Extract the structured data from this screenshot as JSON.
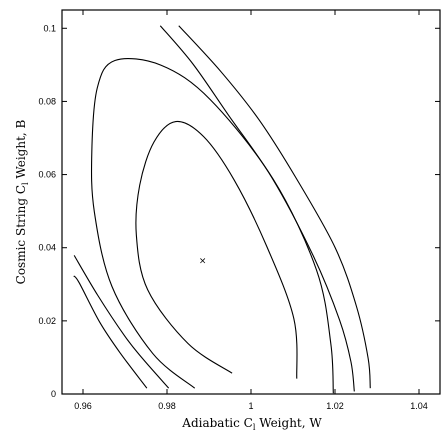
{
  "chart_data": {
    "type": "line",
    "xlabel": {
      "pre": "Adiabatic C",
      "sub": "l",
      "post": " Weight, W"
    },
    "ylabel": {
      "pre": "Cosmic String C",
      "sub": "l",
      "post": " Weight, B"
    },
    "xlim": [
      0.955,
      1.045
    ],
    "ylim": [
      0,
      0.105
    ],
    "x_ticks": [
      0.96,
      0.98,
      1,
      1.02,
      1.04
    ],
    "x_tick_labels": [
      "0.96",
      "0.98",
      "1",
      "1.02",
      "1.04"
    ],
    "y_ticks": [
      0,
      0.02,
      0.04,
      0.06,
      0.08,
      0.1
    ],
    "y_tick_labels": [
      "0",
      "0.02",
      "0.04",
      "0.06",
      "0.08",
      "0.1"
    ],
    "grid": false,
    "best_fit": {
      "x": 0.9885,
      "y": 0.0365,
      "marker": "×"
    },
    "contours": [
      {
        "name": "inner",
        "closed": false,
        "points": [
          [
            0.9955,
            0.0057
          ],
          [
            0.985,
            0.0138
          ],
          [
            0.9754,
            0.0285
          ],
          [
            0.9727,
            0.0435
          ],
          [
            0.9735,
            0.0571
          ],
          [
            0.9769,
            0.0689
          ],
          [
            0.9821,
            0.0745
          ],
          [
            0.9887,
            0.0704
          ],
          [
            0.996,
            0.0585
          ],
          [
            1.0037,
            0.0405
          ],
          [
            1.0102,
            0.0206
          ],
          [
            1.0109,
            0.0042
          ]
        ]
      },
      {
        "name": "middle",
        "closed": false,
        "points": [
          [
            0.9866,
            0.0016
          ],
          [
            0.9766,
            0.0111
          ],
          [
            0.9669,
            0.0294
          ],
          [
            0.9627,
            0.0498
          ],
          [
            0.9621,
            0.0663
          ],
          [
            0.9634,
            0.0837
          ],
          [
            0.9676,
            0.0912
          ],
          [
            0.9786,
            0.0899
          ],
          [
            0.9903,
            0.0805
          ],
          [
            1.0053,
            0.0587
          ],
          [
            1.0156,
            0.0339
          ],
          [
            1.019,
            0.0138
          ],
          [
            1.0196,
            0.0002
          ]
        ]
      },
      {
        "name": "outer-left",
        "closed": false,
        "points": [
          [
            0.9804,
            0.0016
          ],
          [
            0.9741,
            0.0098
          ],
          [
            0.9699,
            0.0159
          ],
          [
            0.9635,
            0.027
          ],
          [
            0.9579,
            0.0379
          ]
        ]
      },
      {
        "name": "outer-right",
        "closed": false,
        "points": [
          [
            0.9784,
            0.1007
          ],
          [
            0.9862,
            0.0902
          ],
          [
            0.9946,
            0.0763
          ],
          [
            1.005,
            0.0591
          ],
          [
            1.0149,
            0.0376
          ],
          [
            1.0211,
            0.0202
          ],
          [
            1.0238,
            0.0088
          ],
          [
            1.0246,
            0.0007
          ]
        ]
      },
      {
        "name": "outermost-left",
        "closed": false,
        "points": [
          [
            0.9752,
            0.0016
          ],
          [
            0.9688,
            0.0113
          ],
          [
            0.964,
            0.0196
          ],
          [
            0.9591,
            0.0304
          ],
          [
            0.9578,
            0.0323
          ]
        ]
      },
      {
        "name": "outermost-right",
        "closed": false,
        "points": [
          [
            0.9828,
            0.1007
          ],
          [
            0.9928,
            0.0882
          ],
          [
            1.0019,
            0.075
          ],
          [
            1.0105,
            0.0595
          ],
          [
            1.02,
            0.0401
          ],
          [
            1.0251,
            0.024
          ],
          [
            1.0279,
            0.0097
          ],
          [
            1.0284,
            0.0016
          ]
        ]
      }
    ]
  }
}
